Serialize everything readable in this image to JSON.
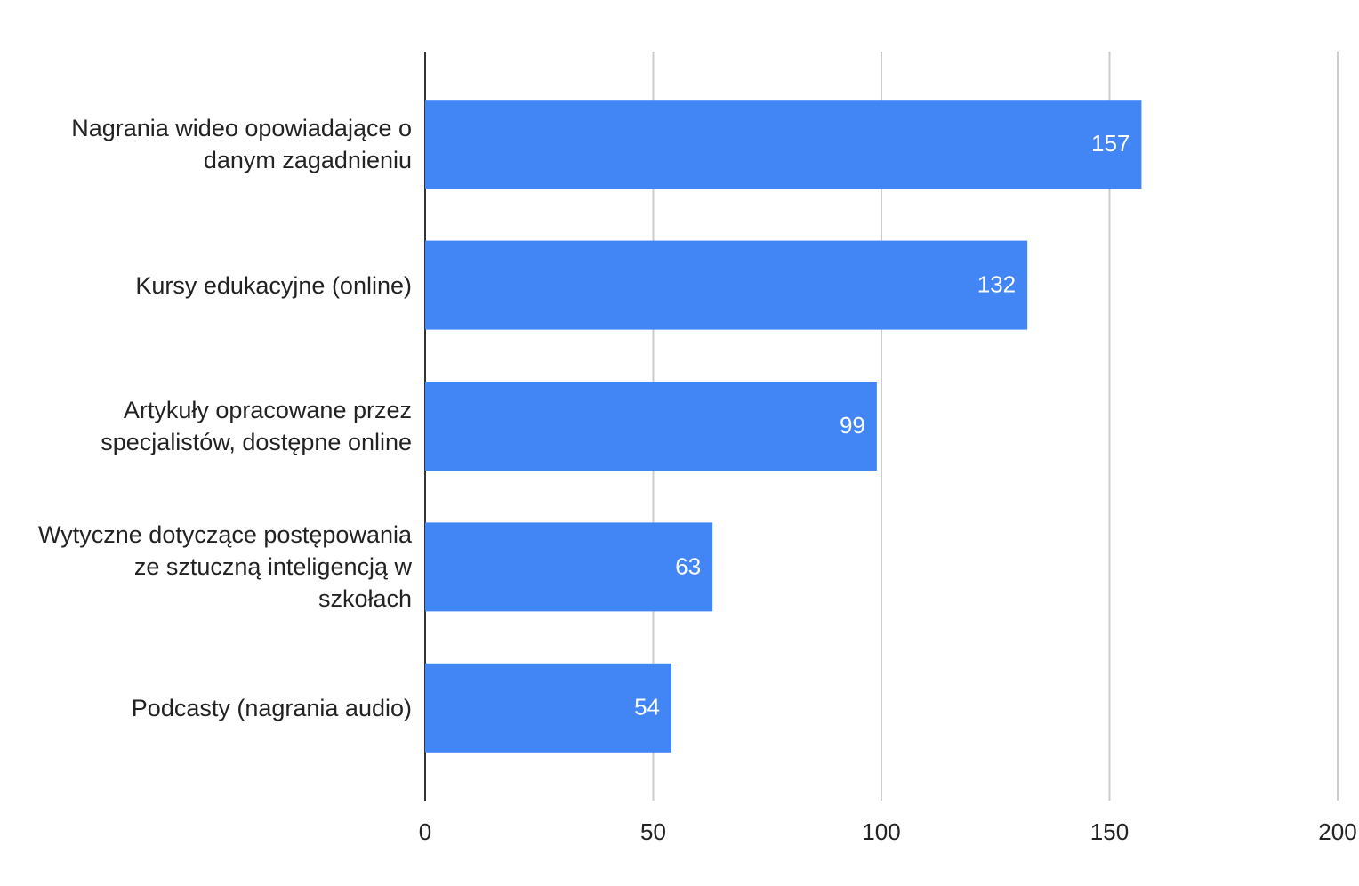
{
  "chart_data": {
    "type": "bar",
    "orientation": "horizontal",
    "categories": [
      "Nagrania wideo opowiadające o danym zagadnieniu",
      "Kursy edukacyjne (online)",
      "Artykuły opracowane przez specjalistów, dostępne online",
      "Wytyczne dotyczące postępowania ze sztuczną inteligencją w szkołach",
      "Podcasty (nagrania audio)"
    ],
    "values": [
      157,
      132,
      99,
      63,
      54
    ],
    "color": "#4285f4",
    "xlim": [
      0,
      200
    ],
    "xticks": [
      0,
      50,
      100,
      150,
      200
    ],
    "grid": true
  }
}
